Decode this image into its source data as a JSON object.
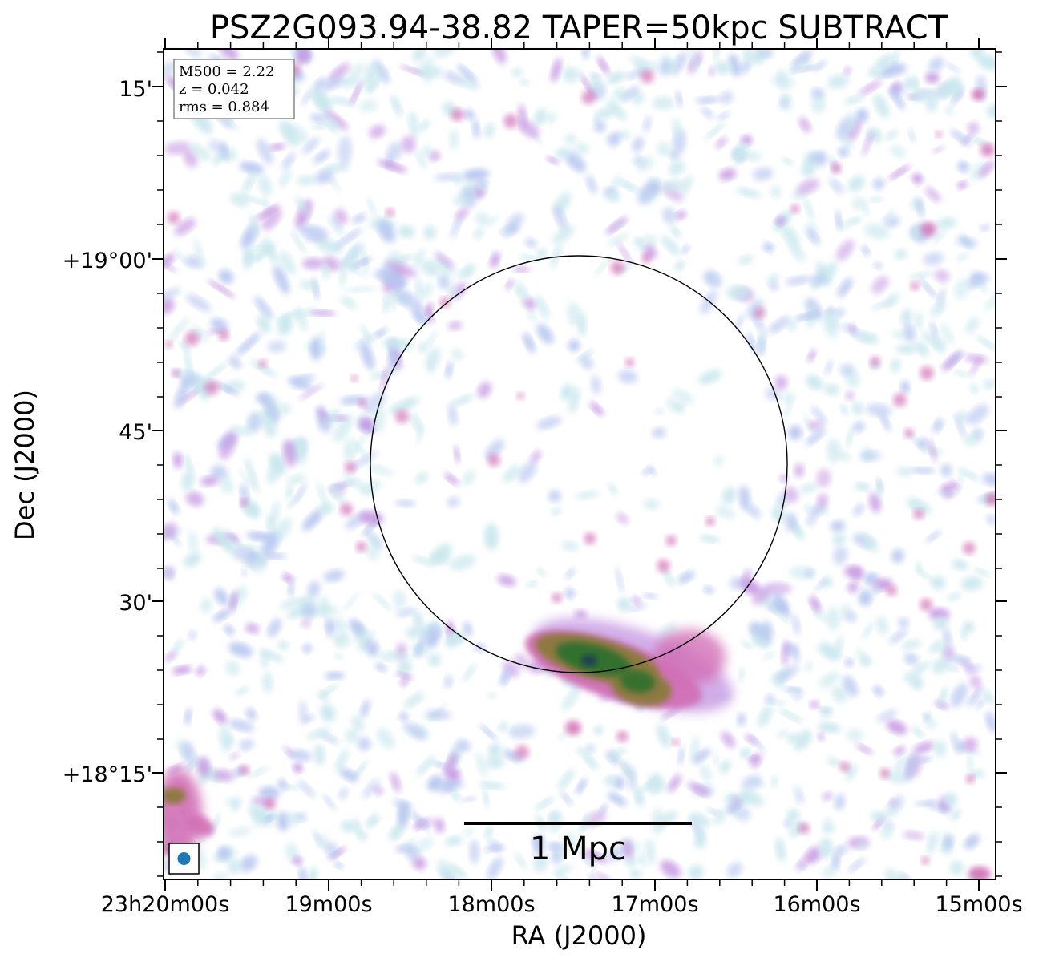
{
  "chart_data": {
    "type": "heatmap",
    "title": "PSZ2G093.94-38.82 TAPER=50kpc SUBTRACT",
    "xlabel": "RA (J2000)",
    "ylabel": "Dec (J2000)",
    "x_ticks": [
      "23h20m00s",
      "19m00s",
      "18m00s",
      "17m00s",
      "16m00s",
      "15m00s"
    ],
    "y_ticks": [
      "15'",
      "+19°00'",
      "45'",
      "30'",
      "+18°15'"
    ],
    "info_box": [
      "M500 = 2.22",
      "z = 0.042",
      "rms = 0.884"
    ],
    "scale_bar_label": "1 Mpc",
    "colormap": "cubehelix-like (white → light blue → lavender → pink → olive → green → dark navy)",
    "circle": "black outline marking cluster region",
    "beam_marker_color": "#1f77b4",
    "grid": false
  },
  "colors": {
    "frame": "#000000",
    "light": "#c9e7ee",
    "blue": "#b7c6f0",
    "lavender": "#c79ae3",
    "pink": "#d26fb6",
    "olive": "#8a7a3a",
    "green": "#2f6f2f",
    "navy": "#1d3a58"
  }
}
